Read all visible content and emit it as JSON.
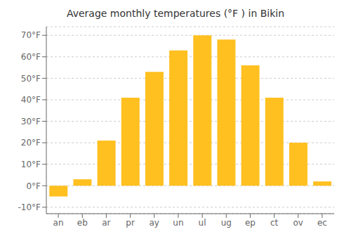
{
  "chart_data": {
    "type": "bar",
    "title": "Average monthly temperatures (°F ) in Bikin",
    "categories": [
      "an",
      "eb",
      "ar",
      "pr",
      "ay",
      "un",
      "ul",
      "ug",
      "ep",
      "ct",
      "ov",
      "ec"
    ],
    "values": [
      -5,
      3,
      21,
      41,
      53,
      63,
      70,
      68,
      56,
      41,
      20,
      2
    ],
    "color": "#FFC020",
    "ylim": [
      -13,
      74
    ],
    "yticks": [
      {
        "value": -10,
        "label": "-10°F"
      },
      {
        "value": 0,
        "label": "0°F"
      },
      {
        "value": 10,
        "label": "10°F"
      },
      {
        "value": 20,
        "label": "20°F"
      },
      {
        "value": 30,
        "label": "30°F"
      },
      {
        "value": 40,
        "label": "40°F"
      },
      {
        "value": 50,
        "label": "50°F"
      },
      {
        "value": 60,
        "label": "60°F"
      },
      {
        "value": 70,
        "label": "70°F"
      }
    ],
    "grid": true
  }
}
